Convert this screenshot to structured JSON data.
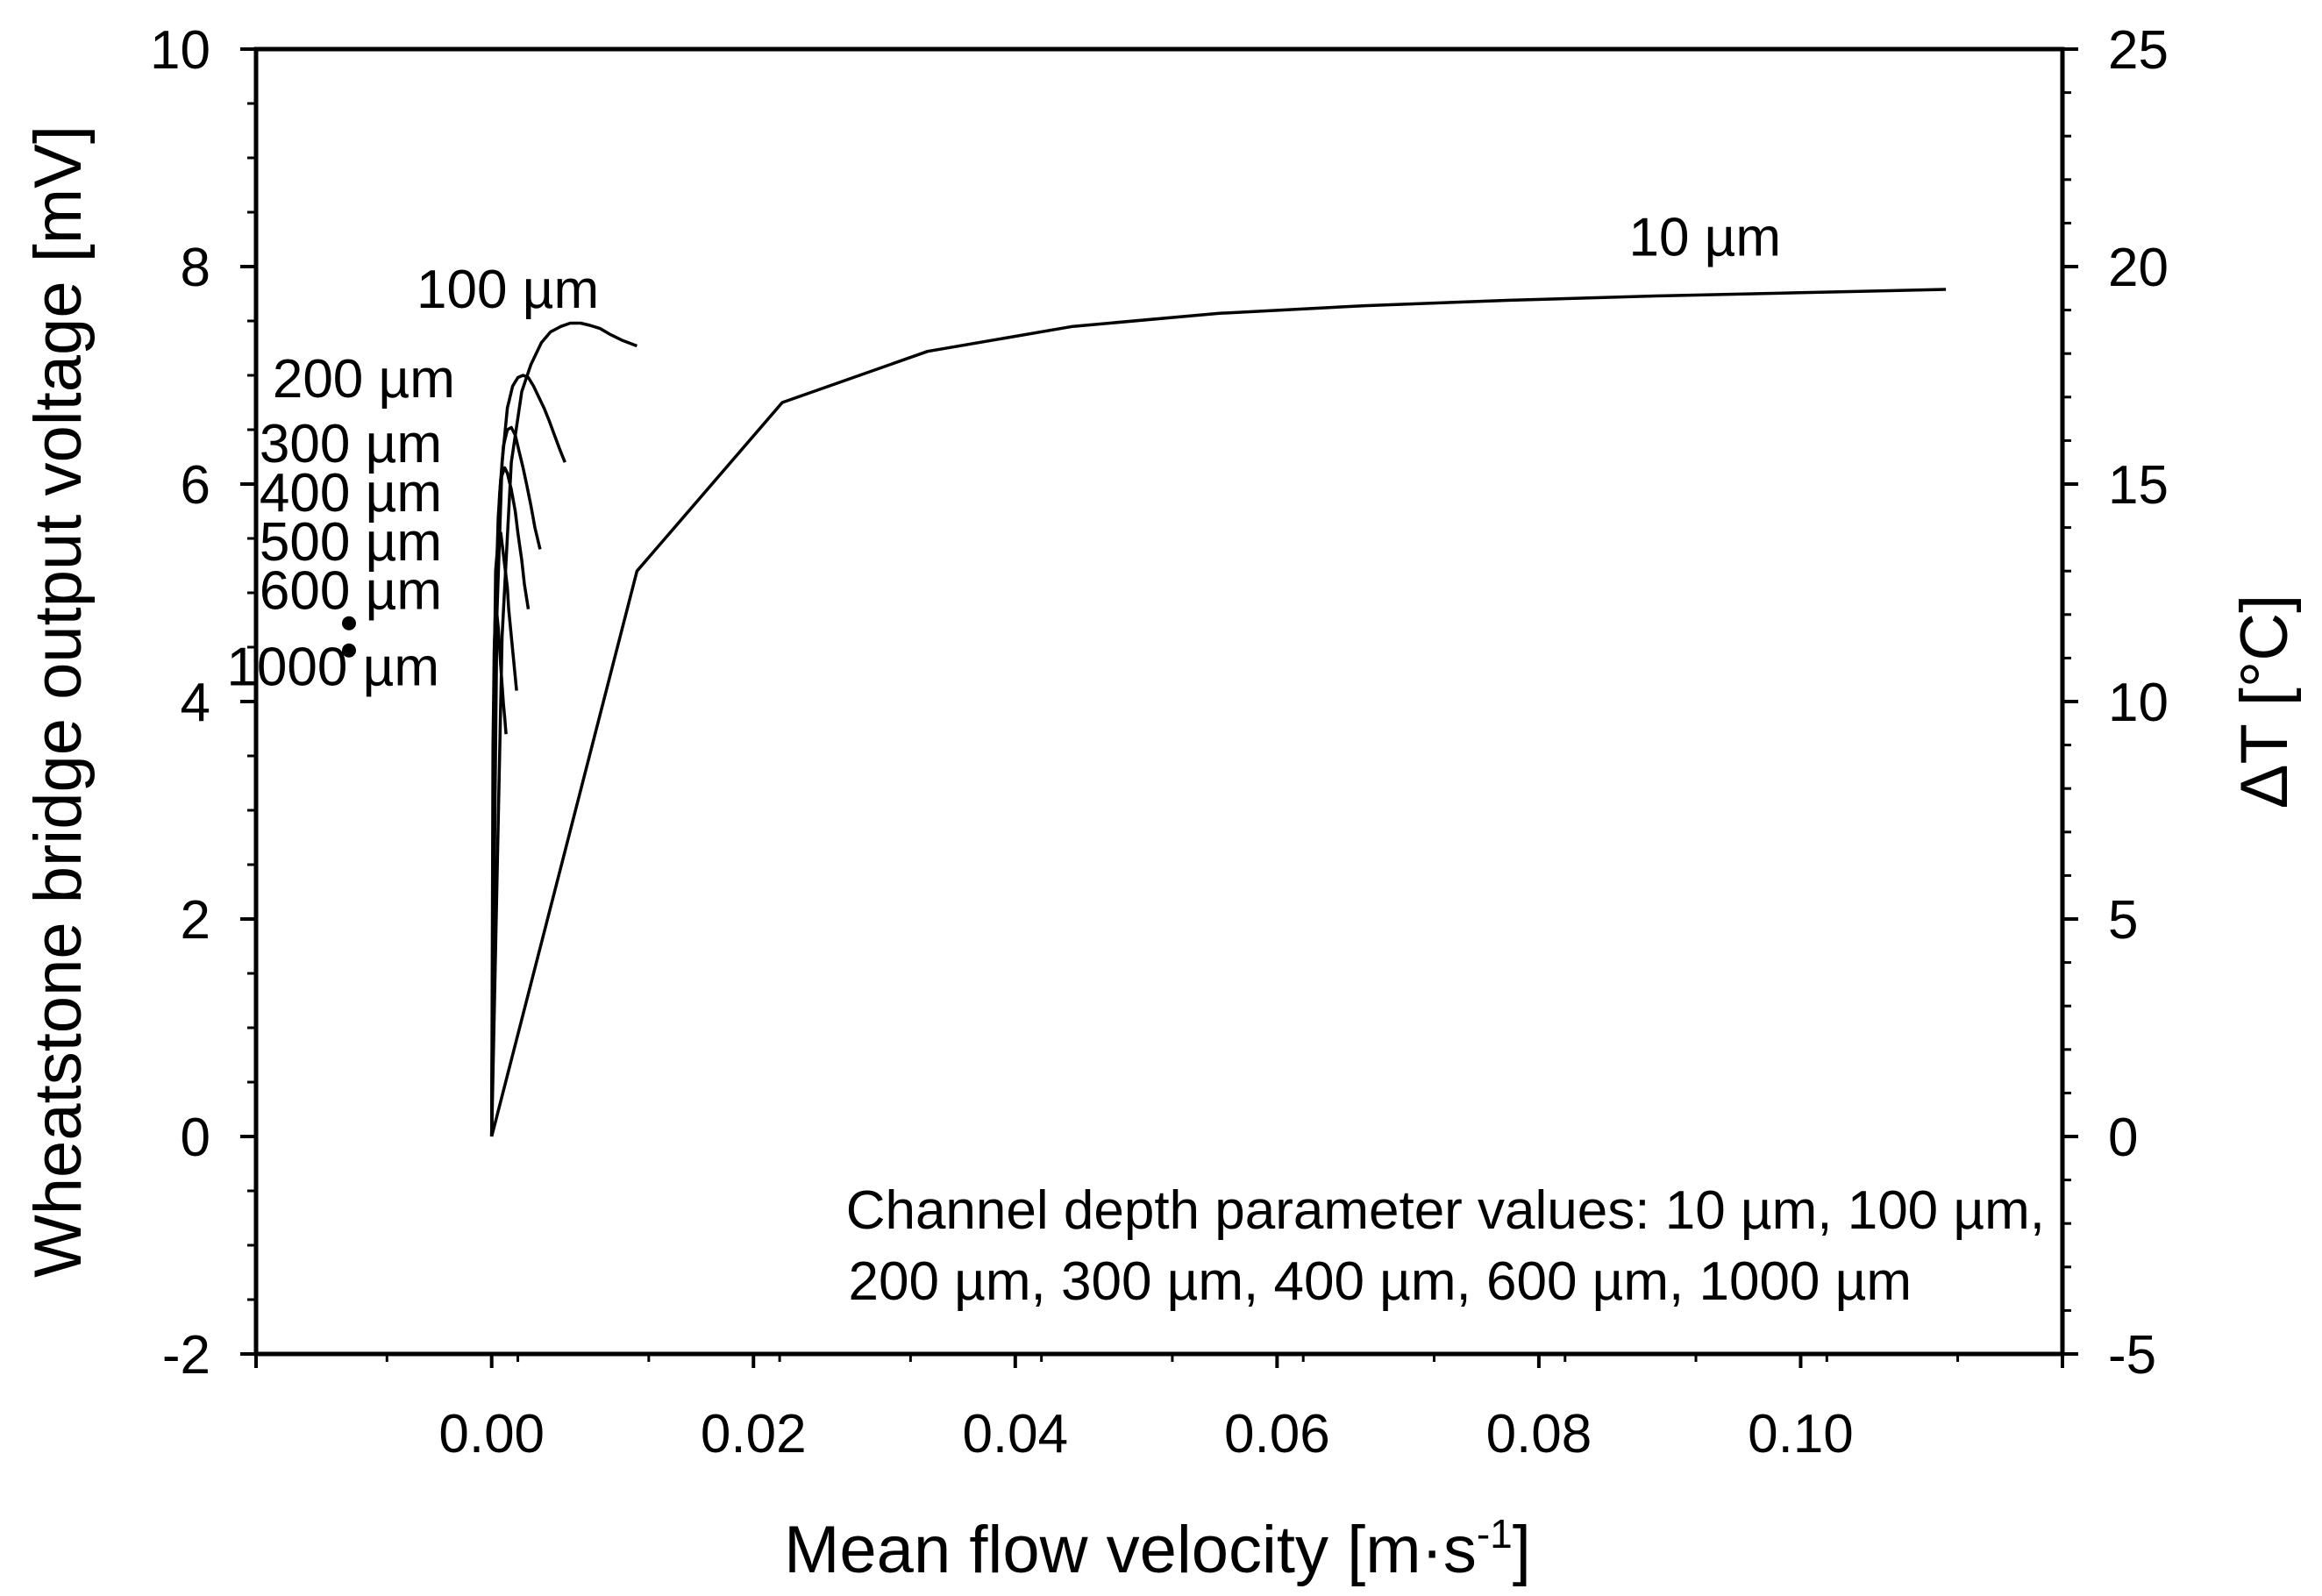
{
  "chart_data": {
    "type": "line",
    "title": "",
    "xlabel": "Mean flow velocity [m·s",
    "xlabel_superscript": "-1",
    "xlabel_suffix": "]",
    "ylabel": "Wheatstone bridge output voltage [mV]",
    "y2label": "ΔT [°C]",
    "xlim": [
      -0.018,
      0.12
    ],
    "ylim": [
      -2,
      10
    ],
    "y2lim": [
      -5,
      25
    ],
    "xticks": [
      "0.00",
      "0.02",
      "0.04",
      "0.06",
      "0.08",
      "0.10"
    ],
    "xtick_values": [
      0.0,
      0.02,
      0.04,
      0.06,
      0.08,
      0.1
    ],
    "yticks": [
      "-2",
      "0",
      "2",
      "4",
      "6",
      "8",
      "10"
    ],
    "ytick_values": [
      -2,
      0,
      2,
      4,
      6,
      8,
      10
    ],
    "y2ticks": [
      "-5",
      "0",
      "5",
      "10",
      "15",
      "20",
      "25"
    ],
    "y2tick_values": [
      -5,
      0,
      5,
      10,
      15,
      20,
      25
    ],
    "series": [
      {
        "name": "10 µm",
        "x": [
          0,
          0.0111,
          0.0222,
          0.0333,
          0.0444,
          0.0556,
          0.0667,
          0.0778,
          0.0889,
          0.1,
          0.1111
        ],
        "y": [
          0,
          5.2,
          6.75,
          7.22,
          7.45,
          7.57,
          7.64,
          7.69,
          7.73,
          7.76,
          7.79
        ]
      },
      {
        "name": "100 µm",
        "x": [
          0,
          0.0008,
          0.0015,
          0.0023,
          0.003,
          0.0038,
          0.0045,
          0.0053,
          0.006,
          0.0068,
          0.0075,
          0.0083,
          0.009,
          0.01,
          0.0111
        ],
        "y": [
          0,
          4.6,
          6.2,
          6.85,
          7.1,
          7.3,
          7.4,
          7.45,
          7.48,
          7.48,
          7.46,
          7.43,
          7.38,
          7.32,
          7.27
        ]
      },
      {
        "name": "200 µm",
        "x": [
          0,
          0.0004,
          0.0008,
          0.0012,
          0.0016,
          0.002,
          0.0024,
          0.0028,
          0.0032,
          0.0036,
          0.004,
          0.0044,
          0.0048,
          0.0052,
          0.0056
        ],
        "y": [
          0,
          4.8,
          6.2,
          6.7,
          6.9,
          6.98,
          7.0,
          6.98,
          6.9,
          6.8,
          6.7,
          6.58,
          6.45,
          6.32,
          6.2
        ]
      },
      {
        "name": "300 µm",
        "x": [
          0,
          0.0003,
          0.0006,
          0.0009,
          0.0012,
          0.0015,
          0.0018,
          0.0021,
          0.0024,
          0.0027,
          0.003,
          0.0033,
          0.0037
        ],
        "y": [
          0,
          4.7,
          5.9,
          6.35,
          6.5,
          6.52,
          6.45,
          6.3,
          6.15,
          5.98,
          5.8,
          5.6,
          5.4
        ]
      },
      {
        "name": "400 µm",
        "x": [
          0,
          0.0002,
          0.0005,
          0.0007,
          0.001,
          0.0012,
          0.0015,
          0.0018,
          0.002,
          0.0023,
          0.0025,
          0.0028
        ],
        "y": [
          0,
          4.5,
          5.7,
          6.05,
          6.15,
          6.1,
          5.95,
          5.75,
          5.55,
          5.3,
          5.08,
          4.85
        ]
      },
      {
        "name": "600 µm",
        "x": [
          0,
          0.0002,
          0.0003,
          0.0005,
          0.0007,
          0.0008,
          0.001,
          0.0012,
          0.0013,
          0.0015,
          0.0017,
          0.0019
        ],
        "y": [
          0,
          4.2,
          5.2,
          5.5,
          5.55,
          5.45,
          5.25,
          5.05,
          4.85,
          4.6,
          4.35,
          4.1
        ]
      },
      {
        "name": "1000 µm",
        "x": [
          0,
          0.0001,
          0.0002,
          0.0003,
          0.0004,
          0.0005,
          0.0006,
          0.0007,
          0.0008,
          0.0009,
          0.001,
          0.0011
        ],
        "y": [
          0,
          3.6,
          4.5,
          4.8,
          4.8,
          4.68,
          4.5,
          4.32,
          4.15,
          3.98,
          3.85,
          3.7
        ]
      }
    ],
    "labels": [
      {
        "text": "10 µm",
        "anchor_x": 0.0985,
        "anchor_y": 8.1
      },
      {
        "text": "100 µm",
        "anchor_x": 0.0082,
        "anchor_y": 7.62
      },
      {
        "text": "200 µm",
        "anchor_x": -0.0028,
        "anchor_y": 6.8
      },
      {
        "text": "300 µm",
        "anchor_x": -0.0038,
        "anchor_y": 6.2
      },
      {
        "text": "400 µm",
        "anchor_x": -0.0038,
        "anchor_y": 5.75
      },
      {
        "text": "500 µm",
        "anchor_x": -0.0038,
        "anchor_y": 5.3
      },
      {
        "text": "600 µm",
        "anchor_x": -0.0038,
        "anchor_y": 4.85
      },
      {
        "text": "1000 µm",
        "anchor_x": -0.004,
        "anchor_y": 4.15
      }
    ],
    "dots": [
      {
        "x": -0.0109,
        "y": 4.72
      },
      {
        "x": -0.0109,
        "y": 4.47
      }
    ],
    "annotation": {
      "line1": "Channel depth parameter values: 10 µm, 100 µm,",
      "line2": "200 µm, 300 µm, 400 µm, 600 µm, 1000 µm"
    }
  }
}
